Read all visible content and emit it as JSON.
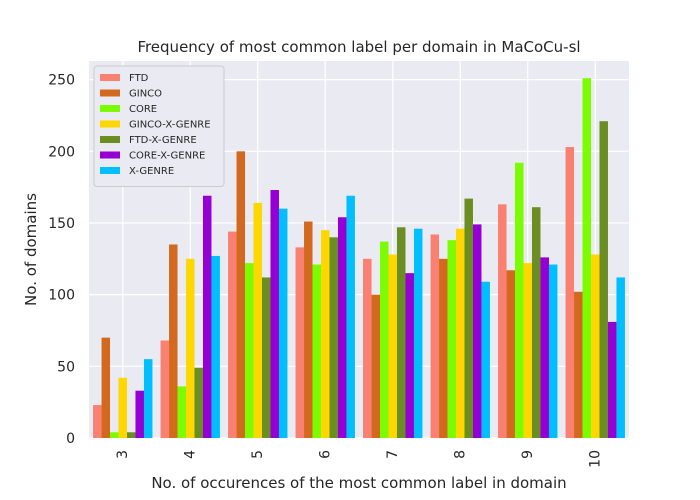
{
  "chart_data": {
    "type": "bar",
    "title": "Frequency of most common label per domain in MaCoCu-sl",
    "xlabel": "No. of occurences of the most common label in domain",
    "ylabel": "No. of domains",
    "categories": [
      "3",
      "4",
      "5",
      "6",
      "7",
      "8",
      "9",
      "10"
    ],
    "ylim": [
      0,
      263
    ],
    "yticks": [
      0,
      50,
      100,
      150,
      200,
      250
    ],
    "grid": true,
    "legend_position": "top-left",
    "series": [
      {
        "name": "FTD",
        "color": "#fa8072",
        "values": [
          23,
          68,
          144,
          133,
          125,
          142,
          163,
          203
        ]
      },
      {
        "name": "GINCO",
        "color": "#d2691e",
        "values": [
          70,
          135,
          200,
          151,
          100,
          125,
          117,
          102
        ]
      },
      {
        "name": "CORE",
        "color": "#7cfc00",
        "values": [
          4,
          36,
          122,
          121,
          137,
          138,
          192,
          251
        ]
      },
      {
        "name": "GINCO-X-GENRE",
        "color": "#ffd700",
        "values": [
          42,
          125,
          164,
          145,
          128,
          146,
          122,
          128
        ]
      },
      {
        "name": "FTD-X-GENRE",
        "color": "#6b8e23",
        "values": [
          4,
          49,
          112,
          140,
          147,
          167,
          161,
          221
        ]
      },
      {
        "name": "CORE-X-GENRE",
        "color": "#9400d3",
        "values": [
          33,
          169,
          173,
          154,
          115,
          149,
          126,
          81
        ]
      },
      {
        "name": "X-GENRE",
        "color": "#00bfff",
        "values": [
          55,
          127,
          160,
          169,
          146,
          109,
          121,
          112
        ]
      }
    ]
  }
}
